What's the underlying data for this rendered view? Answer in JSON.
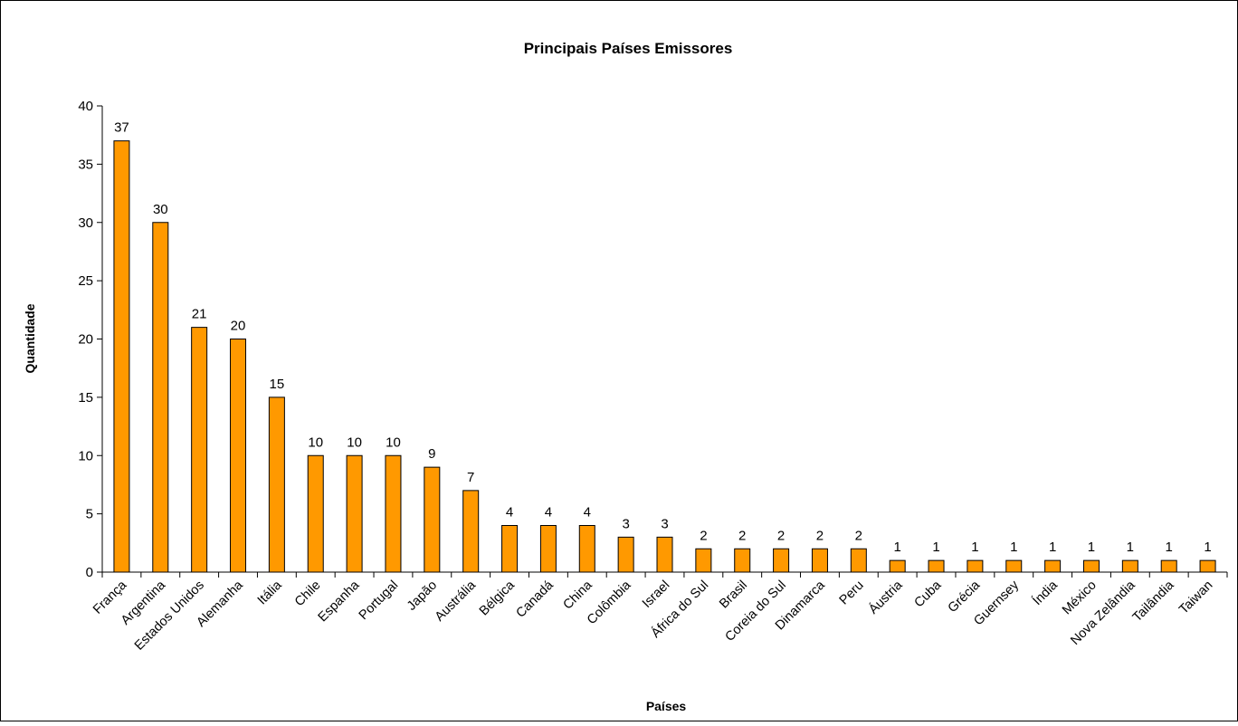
{
  "chart_data": {
    "type": "bar",
    "title": "Principais Países Emissores",
    "xlabel": "Países",
    "ylabel": "Quantidade",
    "ylim": [
      0,
      40
    ],
    "yticks": [
      0,
      5,
      10,
      15,
      20,
      25,
      30,
      35,
      40
    ],
    "grid": false,
    "legend": "none",
    "bar_color": "#FF9900",
    "bar_stroke": "#000000",
    "categories": [
      "França",
      "Argentina",
      "Estados Unidos",
      "Alemanha",
      "Itália",
      "Chile",
      "Espanha",
      "Portugal",
      "Japão",
      "Austrália",
      "Bélgica",
      "Canadá",
      "China",
      "Colômbia",
      "Israel",
      "África do Sul",
      "Brasil",
      "Coreia do Sul",
      "Dinamarca",
      "Peru",
      "Áustria",
      "Cuba",
      "Grécia",
      "Guernsey",
      "Índia",
      "México",
      "Nova Zelândia",
      "Tailândia",
      "Taiwan"
    ],
    "values": [
      37,
      30,
      21,
      20,
      15,
      10,
      10,
      10,
      9,
      7,
      4,
      4,
      4,
      3,
      3,
      2,
      2,
      2,
      2,
      2,
      1,
      1,
      1,
      1,
      1,
      1,
      1,
      1,
      1
    ],
    "data_labels": [
      "37",
      "30",
      "21",
      "20",
      "15",
      "10",
      "10",
      "10",
      "9",
      "7",
      "4",
      "4",
      "4",
      "3",
      "3",
      "2",
      "2",
      "2",
      "2",
      "2",
      "1",
      "1",
      "1",
      "1",
      "1",
      "1",
      "1",
      "1",
      "1"
    ]
  }
}
